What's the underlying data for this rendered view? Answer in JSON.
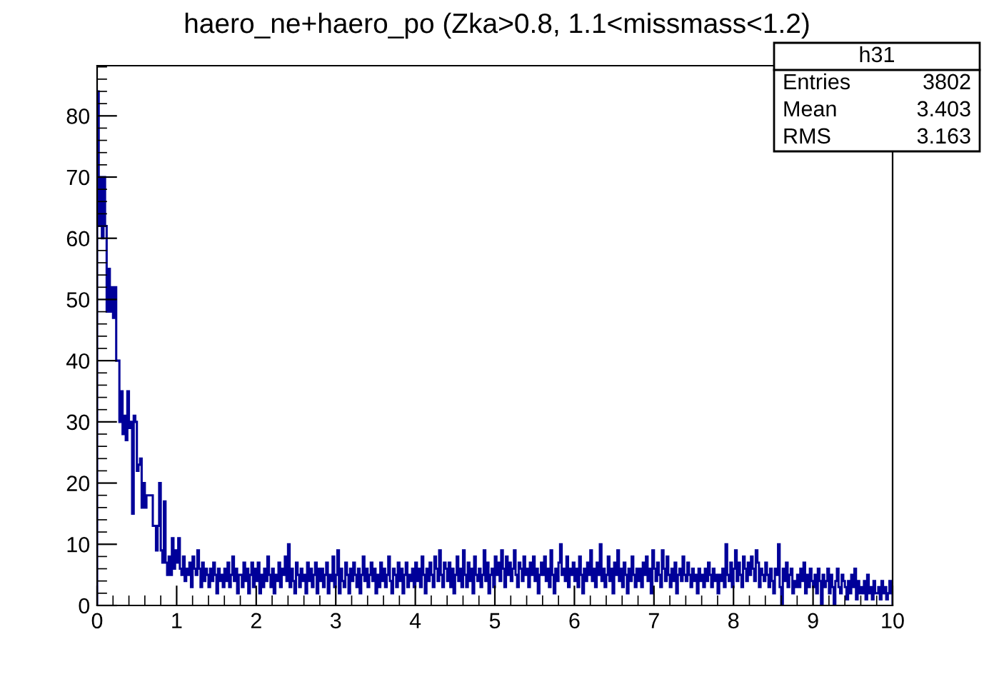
{
  "chart_data": {
    "type": "histogram",
    "title": "haero_ne+haero_po (Zka>0.8, 1.1<missmass<1.2)",
    "color": "#000099",
    "bins": [
      0,
      0.02,
      0.04,
      0.06,
      0.08,
      0.1,
      0.12,
      0.14,
      0.16,
      0.18,
      0.2,
      0.22,
      0.24,
      0.26,
      0.28,
      0.3,
      0.32,
      0.34,
      0.36,
      0.38,
      0.4,
      0.42,
      0.44,
      0.46,
      0.48,
      0.5,
      0.52,
      0.54,
      0.56,
      0.58,
      0.6,
      0.62,
      0.64,
      0.66,
      0.68,
      0.7,
      0.72,
      0.74,
      0.76,
      0.78,
      0.8,
      0.82,
      0.84,
      0.86,
      0.88,
      0.9,
      0.92,
      0.94,
      0.96,
      0.98,
      1,
      1.02,
      1.04,
      1.06,
      1.08,
      1.1,
      1.12,
      1.14,
      1.16,
      1.18,
      1.2,
      1.22,
      1.24,
      1.26,
      1.28,
      1.3,
      1.32,
      1.34,
      1.36,
      1.38,
      1.4,
      1.42,
      1.44,
      1.46,
      1.48,
      1.5,
      1.52,
      1.54,
      1.56,
      1.58,
      1.6,
      1.62,
      1.64,
      1.66,
      1.68,
      1.7,
      1.72,
      1.74,
      1.76,
      1.78,
      1.8,
      1.82,
      1.84,
      1.86,
      1.88,
      1.9,
      1.92,
      1.94,
      1.96,
      1.98,
      2,
      2.02,
      2.04,
      2.06,
      2.08,
      2.1,
      2.12,
      2.14,
      2.16,
      2.18,
      2.2,
      2.22,
      2.24,
      2.26,
      2.28,
      2.3,
      2.32,
      2.34,
      2.36,
      2.38,
      2.4,
      2.42,
      2.44,
      2.46,
      2.48,
      2.5,
      2.52,
      2.54,
      2.56,
      2.58,
      2.6,
      2.62,
      2.64,
      2.66,
      2.68,
      2.7,
      2.72,
      2.74,
      2.76,
      2.78,
      2.8,
      2.82,
      2.84,
      2.86,
      2.88,
      2.9,
      2.92,
      2.94,
      2.96,
      2.98,
      3,
      3.02,
      3.04,
      3.06,
      3.08,
      3.1,
      3.12,
      3.14,
      3.16,
      3.18,
      3.2,
      3.22,
      3.24,
      3.26,
      3.28,
      3.3,
      3.32,
      3.34,
      3.36,
      3.38,
      3.4,
      3.42,
      3.44,
      3.46,
      3.48,
      3.5,
      3.52,
      3.54,
      3.56,
      3.58,
      3.6,
      3.62,
      3.64,
      3.66,
      3.68,
      3.7,
      3.72,
      3.74,
      3.76,
      3.78,
      3.8,
      3.82,
      3.84,
      3.86,
      3.88,
      3.9,
      3.92,
      3.94,
      3.96,
      3.98,
      4,
      4.02,
      4.04,
      4.06,
      4.08,
      4.1,
      4.12,
      4.14,
      4.16,
      4.18,
      4.2,
      4.22,
      4.24,
      4.26,
      4.28,
      4.3,
      4.32,
      4.34,
      4.36,
      4.38,
      4.4,
      4.42,
      4.44,
      4.46,
      4.48,
      4.5,
      4.52,
      4.54,
      4.56,
      4.58,
      4.6,
      4.62,
      4.64,
      4.66,
      4.68,
      4.7,
      4.72,
      4.74,
      4.76,
      4.78,
      4.8,
      4.82,
      4.84,
      4.86,
      4.88,
      4.9,
      4.92,
      4.94,
      4.96,
      4.98,
      5,
      5.02,
      5.04,
      5.06,
      5.08,
      5.1,
      5.12,
      5.14,
      5.16,
      5.18,
      5.2,
      5.22,
      5.24,
      5.26,
      5.28,
      5.3,
      5.32,
      5.34,
      5.36,
      5.38,
      5.4,
      5.42,
      5.44,
      5.46,
      5.48,
      5.5,
      5.52,
      5.54,
      5.56,
      5.58,
      5.6,
      5.62,
      5.64,
      5.66,
      5.68,
      5.7,
      5.72,
      5.74,
      5.76,
      5.78,
      5.8,
      5.82,
      5.84,
      5.86,
      5.88,
      5.9,
      5.92,
      5.94,
      5.96,
      5.98,
      6,
      6.02,
      6.04,
      6.06,
      6.08,
      6.1,
      6.12,
      6.14,
      6.16,
      6.18,
      6.2,
      6.22,
      6.24,
      6.26,
      6.28,
      6.3,
      6.32,
      6.34,
      6.36,
      6.38,
      6.4,
      6.42,
      6.44,
      6.46,
      6.48,
      6.5,
      6.52,
      6.54,
      6.56,
      6.58,
      6.6,
      6.62,
      6.64,
      6.66,
      6.68,
      6.7,
      6.72,
      6.74,
      6.76,
      6.78,
      6.8,
      6.82,
      6.84,
      6.86,
      6.88,
      6.9,
      6.92,
      6.94,
      6.96,
      6.98,
      7,
      7.02,
      7.04,
      7.06,
      7.08,
      7.1,
      7.12,
      7.14,
      7.16,
      7.18,
      7.2,
      7.22,
      7.24,
      7.26,
      7.28,
      7.3,
      7.32,
      7.34,
      7.36,
      7.38,
      7.4,
      7.42,
      7.44,
      7.46,
      7.48,
      7.5,
      7.52,
      7.54,
      7.56,
      7.58,
      7.6,
      7.62,
      7.64,
      7.66,
      7.68,
      7.7,
      7.72,
      7.74,
      7.76,
      7.78,
      7.8,
      7.82,
      7.84,
      7.86,
      7.88,
      7.9,
      7.92,
      7.94,
      7.96,
      7.98,
      8,
      8.02,
      8.04,
      8.06,
      8.08,
      8.1,
      8.12,
      8.14,
      8.16,
      8.18,
      8.2,
      8.22,
      8.24,
      8.26,
      8.28,
      8.3,
      8.32,
      8.34,
      8.36,
      8.38,
      8.4,
      8.42,
      8.44,
      8.46,
      8.48,
      8.5,
      8.52,
      8.54,
      8.56,
      8.58,
      8.6,
      8.62,
      8.64,
      8.66,
      8.68,
      8.7,
      8.72,
      8.74,
      8.76,
      8.78,
      8.8,
      8.82,
      8.84,
      8.86,
      8.88,
      8.9,
      8.92,
      8.94,
      8.96,
      8.98,
      9,
      9.02,
      9.04,
      9.06,
      9.08,
      9.1,
      9.12,
      9.14,
      9.16,
      9.18,
      9.2,
      9.22,
      9.24,
      9.26,
      9.28,
      9.3,
      9.32,
      9.34,
      9.36,
      9.38,
      9.4,
      9.42,
      9.44,
      9.46,
      9.48,
      9.5,
      9.52,
      9.54,
      9.56,
      9.58,
      9.6,
      9.62,
      9.64,
      9.66,
      9.68,
      9.7,
      9.72,
      9.74,
      9.76,
      9.78,
      9.8,
      9.82,
      9.84,
      9.86,
      9.88,
      9.9,
      9.92,
      9.94,
      9.96,
      9.98,
      10
    ],
    "values": [
      84,
      62,
      70,
      60,
      70,
      62,
      48,
      55,
      48,
      52,
      47,
      52,
      40,
      40,
      30,
      35,
      28,
      31,
      27,
      35,
      29,
      30,
      15,
      31,
      30,
      22,
      23,
      24,
      16,
      20,
      16,
      18,
      18,
      18,
      18,
      13,
      13,
      9,
      13,
      20,
      9,
      7,
      17,
      7,
      5,
      8,
      5,
      11,
      6,
      9,
      7,
      11,
      6,
      5,
      8,
      4,
      6,
      5,
      7,
      3,
      8,
      6,
      5,
      9,
      6,
      3,
      7,
      4,
      6,
      5,
      3,
      6,
      4,
      7,
      5,
      2,
      6,
      4,
      5,
      3,
      6,
      4,
      7,
      3,
      5,
      8,
      4,
      6,
      2,
      5,
      5,
      3,
      7,
      4,
      6,
      2,
      5,
      7,
      3,
      6,
      4,
      7,
      2,
      5,
      3,
      6,
      4,
      8,
      5,
      3,
      6,
      2,
      5,
      4,
      7,
      3,
      6,
      5,
      8,
      4,
      10,
      3,
      6,
      4,
      2,
      7,
      5,
      3,
      6,
      4,
      5,
      2,
      7,
      4,
      6,
      3,
      5,
      7,
      2,
      6,
      4,
      6,
      3,
      5,
      7,
      2,
      5,
      4,
      8,
      3,
      5,
      9,
      2,
      6,
      4,
      3,
      7,
      5,
      2,
      6,
      4,
      7,
      5,
      3,
      6,
      2,
      5,
      8,
      4,
      6,
      3,
      5,
      7,
      4,
      6,
      2,
      5,
      3,
      7,
      4,
      6,
      3,
      5,
      8,
      4,
      2,
      6,
      5,
      3,
      7,
      4,
      6,
      2,
      5,
      7,
      3,
      5,
      4,
      6,
      3,
      7,
      4,
      6,
      3,
      8,
      5,
      2,
      6,
      4,
      7,
      5,
      3,
      8,
      6,
      4,
      9,
      5,
      3,
      7,
      6,
      4,
      7,
      3,
      6,
      2,
      5,
      8,
      4,
      6,
      3,
      9,
      5,
      3,
      7,
      4,
      6,
      2,
      8,
      5,
      4,
      6,
      3,
      5,
      9,
      4,
      7,
      2,
      5,
      6,
      3,
      8,
      5,
      7,
      4,
      9,
      6,
      3,
      8,
      5,
      7,
      4,
      6,
      9,
      5,
      3,
      7,
      6,
      4,
      8,
      5,
      6,
      3,
      7,
      5,
      8,
      4,
      6,
      2,
      5,
      7,
      5,
      8,
      4,
      6,
      3,
      9,
      5,
      2,
      6,
      4,
      7,
      10,
      5,
      6,
      4,
      8,
      3,
      6,
      5,
      7,
      4,
      6,
      3,
      8,
      5,
      2,
      6,
      4,
      7,
      5,
      9,
      4,
      6,
      3,
      7,
      5,
      10,
      4,
      6,
      3,
      5,
      8,
      4,
      6,
      2,
      7,
      5,
      9,
      4,
      6,
      3,
      7,
      5,
      2,
      6,
      4,
      8,
      5,
      3,
      6,
      4,
      6,
      3,
      7,
      5,
      8,
      4,
      6,
      2,
      9,
      6,
      4,
      7,
      5,
      3,
      9,
      6,
      4,
      8,
      5,
      3,
      6,
      4,
      7,
      2,
      5,
      6,
      4,
      8,
      5,
      4,
      7,
      5,
      3,
      6,
      4,
      5,
      2,
      6,
      4,
      5,
      3,
      6,
      4,
      7,
      5,
      3,
      6,
      4,
      5,
      2,
      5,
      4,
      6,
      3,
      10,
      5,
      4,
      7,
      3,
      6,
      9,
      4,
      7,
      5,
      3,
      8,
      6,
      4,
      7,
      5,
      8,
      6,
      4,
      9,
      7,
      3,
      6,
      5,
      4,
      7,
      5,
      3,
      6,
      4,
      2,
      6,
      5,
      10,
      3,
      0,
      6,
      4,
      7,
      3,
      5,
      6,
      2,
      4,
      3,
      5,
      3,
      6,
      4,
      7,
      2,
      5,
      3,
      6,
      4,
      3,
      5,
      2,
      6,
      4,
      0,
      5,
      3,
      4,
      6,
      2,
      5,
      3,
      0,
      4,
      6,
      3,
      2,
      5,
      4,
      3,
      1,
      4,
      2,
      5,
      3,
      6,
      1,
      4,
      2,
      3,
      2,
      4,
      1,
      5,
      2,
      3,
      1,
      4,
      2,
      2,
      3,
      1,
      4,
      2,
      3,
      1,
      2,
      4,
      2
    ],
    "xlim": [
      0,
      10
    ],
    "xticks": [
      0,
      1,
      2,
      3,
      4,
      5,
      6,
      7,
      8,
      9,
      10
    ],
    "ylim": [
      0,
      88.2
    ],
    "yticks": [
      0,
      10,
      20,
      30,
      40,
      50,
      60,
      70,
      80
    ],
    "annotations": [
      "h31",
      "Entries",
      "3802",
      "Mean",
      "3.403",
      "RMS",
      "3.163"
    ],
    "grid": false,
    "legend": false
  }
}
